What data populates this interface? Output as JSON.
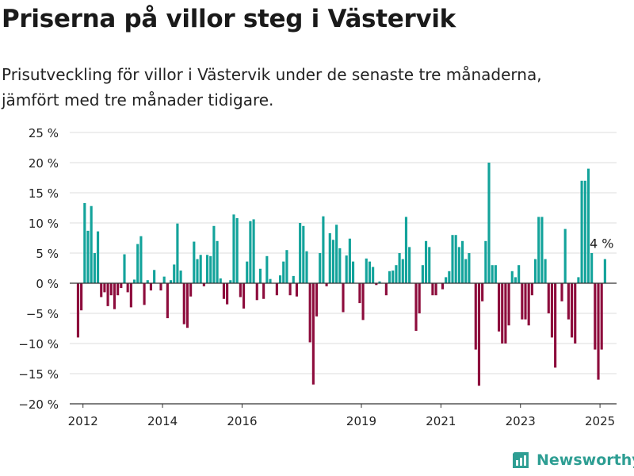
{
  "header": {
    "title": "Priserna på villor steg i Västervik",
    "subtitle": "Prisutveckling för villor i Västervik under de senaste tre månaderna, jämfört med tre månader tidigare."
  },
  "brand": {
    "name": "Newsworthy",
    "icon": "bar-chart-logo-icon"
  },
  "colors": {
    "positive": "#13a39b",
    "negative": "#8d0c3c",
    "grid": "#dddddd",
    "axis": "#333333",
    "text": "#222222"
  },
  "chart_data": {
    "type": "bar",
    "ylim": [
      -20,
      25
    ],
    "yticks": [
      -20,
      -15,
      -10,
      -5,
      0,
      5,
      10,
      15,
      20,
      25
    ],
    "ytick_labels": [
      "−20 %",
      "−15 %",
      "−10 %",
      "−5 %",
      "0 %",
      "5 %",
      "10 %",
      "15 %",
      "20 %",
      "25 %"
    ],
    "xtick_labels": [
      "2012",
      "2014",
      "2016",
      "2019",
      "2021",
      "2023",
      "2025"
    ],
    "xlim": [
      "2011-09",
      "2025-06"
    ],
    "grid": true,
    "annotation": {
      "text": "4 %",
      "month": "2025-01",
      "value": 4
    },
    "values": [
      {
        "month": "2011-11",
        "value": -9
      },
      {
        "month": "2011-12",
        "value": -4.5
      },
      {
        "month": "2012-01",
        "value": 13.3
      },
      {
        "month": "2012-02",
        "value": 8.7
      },
      {
        "month": "2012-03",
        "value": 12.8
      },
      {
        "month": "2012-04",
        "value": 5
      },
      {
        "month": "2012-05",
        "value": 8.6
      },
      {
        "month": "2012-06",
        "value": -2.3
      },
      {
        "month": "2012-07",
        "value": -1.5
      },
      {
        "month": "2012-08",
        "value": -3.8
      },
      {
        "month": "2012-09",
        "value": -2
      },
      {
        "month": "2012-10",
        "value": -4.3
      },
      {
        "month": "2012-11",
        "value": -2
      },
      {
        "month": "2012-12",
        "value": -0.8
      },
      {
        "month": "2013-01",
        "value": 4.8
      },
      {
        "month": "2013-02",
        "value": -1.5
      },
      {
        "month": "2013-03",
        "value": -4
      },
      {
        "month": "2013-04",
        "value": 0.6
      },
      {
        "month": "2013-05",
        "value": 6.5
      },
      {
        "month": "2013-06",
        "value": 7.8
      },
      {
        "month": "2013-07",
        "value": -3.6
      },
      {
        "month": "2013-08",
        "value": 0.5
      },
      {
        "month": "2013-09",
        "value": -1.2
      },
      {
        "month": "2013-10",
        "value": 2.2
      },
      {
        "month": "2013-11",
        "value": 0
      },
      {
        "month": "2013-12",
        "value": -1.2
      },
      {
        "month": "2014-01",
        "value": 1.1
      },
      {
        "month": "2014-02",
        "value": -5.8
      },
      {
        "month": "2014-03",
        "value": 0.5
      },
      {
        "month": "2014-04",
        "value": 3.1
      },
      {
        "month": "2014-05",
        "value": 9.9
      },
      {
        "month": "2014-06",
        "value": 2.1
      },
      {
        "month": "2014-07",
        "value": -6.8
      },
      {
        "month": "2014-08",
        "value": -7.4
      },
      {
        "month": "2014-09",
        "value": -2.2
      },
      {
        "month": "2014-10",
        "value": 6.9
      },
      {
        "month": "2014-11",
        "value": 4
      },
      {
        "month": "2014-12",
        "value": 4.7
      },
      {
        "month": "2015-01",
        "value": -0.5
      },
      {
        "month": "2015-02",
        "value": 4.7
      },
      {
        "month": "2015-03",
        "value": 4.5
      },
      {
        "month": "2015-04",
        "value": 9.5
      },
      {
        "month": "2015-05",
        "value": 7
      },
      {
        "month": "2015-06",
        "value": 0.8
      },
      {
        "month": "2015-07",
        "value": -2.6
      },
      {
        "month": "2015-08",
        "value": -3.5
      },
      {
        "month": "2015-09",
        "value": 0.5
      },
      {
        "month": "2015-10",
        "value": 11.4
      },
      {
        "month": "2015-11",
        "value": 10.8
      },
      {
        "month": "2015-12",
        "value": -2.3
      },
      {
        "month": "2016-01",
        "value": -4.2
      },
      {
        "month": "2016-02",
        "value": 3.6
      },
      {
        "month": "2016-03",
        "value": 10.3
      },
      {
        "month": "2016-04",
        "value": 10.6
      },
      {
        "month": "2016-05",
        "value": -2.8
      },
      {
        "month": "2016-06",
        "value": 2.4
      },
      {
        "month": "2016-07",
        "value": -2.6
      },
      {
        "month": "2016-08",
        "value": 4.5
      },
      {
        "month": "2016-09",
        "value": 0.7
      },
      {
        "month": "2016-10",
        "value": 0
      },
      {
        "month": "2016-11",
        "value": -2
      },
      {
        "month": "2016-12",
        "value": 1.3
      },
      {
        "month": "2017-01",
        "value": 3.6
      },
      {
        "month": "2017-02",
        "value": 5.5
      },
      {
        "month": "2017-03",
        "value": -2
      },
      {
        "month": "2017-04",
        "value": 1.2
      },
      {
        "month": "2017-05",
        "value": -2.2
      },
      {
        "month": "2017-06",
        "value": 10
      },
      {
        "month": "2017-07",
        "value": 9.5
      },
      {
        "month": "2017-08",
        "value": 5.3
      },
      {
        "month": "2017-09",
        "value": -9.8
      },
      {
        "month": "2017-10",
        "value": -16.8
      },
      {
        "month": "2017-11",
        "value": -5.5
      },
      {
        "month": "2017-12",
        "value": 5
      },
      {
        "month": "2018-01",
        "value": 11.1
      },
      {
        "month": "2018-02",
        "value": -0.5
      },
      {
        "month": "2018-03",
        "value": 8.3
      },
      {
        "month": "2018-04",
        "value": 7.2
      },
      {
        "month": "2018-05",
        "value": 9.7
      },
      {
        "month": "2018-06",
        "value": 5.8
      },
      {
        "month": "2018-07",
        "value": -4.8
      },
      {
        "month": "2018-08",
        "value": 4.6
      },
      {
        "month": "2018-09",
        "value": 7.4
      },
      {
        "month": "2018-10",
        "value": 3.6
      },
      {
        "month": "2018-11",
        "value": 0
      },
      {
        "month": "2018-12",
        "value": -3.3
      },
      {
        "month": "2019-01",
        "value": -6.1
      },
      {
        "month": "2019-02",
        "value": 4.1
      },
      {
        "month": "2019-03",
        "value": 3.6
      },
      {
        "month": "2019-04",
        "value": 2.7
      },
      {
        "month": "2019-05",
        "value": -0.3
      },
      {
        "month": "2019-06",
        "value": 0.3
      },
      {
        "month": "2019-07",
        "value": 0
      },
      {
        "month": "2019-08",
        "value": -2
      },
      {
        "month": "2019-09",
        "value": 2
      },
      {
        "month": "2019-10",
        "value": 2.1
      },
      {
        "month": "2019-11",
        "value": 3
      },
      {
        "month": "2019-12",
        "value": 5
      },
      {
        "month": "2020-01",
        "value": 4
      },
      {
        "month": "2020-02",
        "value": 11
      },
      {
        "month": "2020-03",
        "value": 6
      },
      {
        "month": "2020-04",
        "value": 0
      },
      {
        "month": "2020-05",
        "value": -7.9
      },
      {
        "month": "2020-06",
        "value": -5
      },
      {
        "month": "2020-07",
        "value": 3
      },
      {
        "month": "2020-08",
        "value": 7
      },
      {
        "month": "2020-09",
        "value": 6
      },
      {
        "month": "2020-10",
        "value": -2
      },
      {
        "month": "2020-11",
        "value": -2
      },
      {
        "month": "2020-12",
        "value": 0
      },
      {
        "month": "2021-01",
        "value": -1
      },
      {
        "month": "2021-02",
        "value": 1
      },
      {
        "month": "2021-03",
        "value": 2
      },
      {
        "month": "2021-04",
        "value": 8
      },
      {
        "month": "2021-05",
        "value": 8
      },
      {
        "month": "2021-06",
        "value": 6
      },
      {
        "month": "2021-07",
        "value": 7
      },
      {
        "month": "2021-08",
        "value": 4
      },
      {
        "month": "2021-09",
        "value": 5
      },
      {
        "month": "2021-10",
        "value": 0
      },
      {
        "month": "2021-11",
        "value": -11
      },
      {
        "month": "2021-12",
        "value": -17
      },
      {
        "month": "2022-01",
        "value": -3
      },
      {
        "month": "2022-02",
        "value": 7
      },
      {
        "month": "2022-03",
        "value": 20
      },
      {
        "month": "2022-04",
        "value": 3
      },
      {
        "month": "2022-05",
        "value": 3
      },
      {
        "month": "2022-06",
        "value": -8
      },
      {
        "month": "2022-07",
        "value": -10
      },
      {
        "month": "2022-08",
        "value": -10
      },
      {
        "month": "2022-09",
        "value": -7
      },
      {
        "month": "2022-10",
        "value": 2
      },
      {
        "month": "2022-11",
        "value": 1
      },
      {
        "month": "2022-12",
        "value": 3
      },
      {
        "month": "2023-01",
        "value": -6
      },
      {
        "month": "2023-02",
        "value": -6
      },
      {
        "month": "2023-03",
        "value": -7
      },
      {
        "month": "2023-04",
        "value": -2
      },
      {
        "month": "2023-05",
        "value": 4
      },
      {
        "month": "2023-06",
        "value": 11
      },
      {
        "month": "2023-07",
        "value": 11
      },
      {
        "month": "2023-08",
        "value": 4
      },
      {
        "month": "2023-09",
        "value": -5
      },
      {
        "month": "2023-10",
        "value": -9
      },
      {
        "month": "2023-11",
        "value": -14
      },
      {
        "month": "2023-12",
        "value": 0
      },
      {
        "month": "2024-01",
        "value": -3
      },
      {
        "month": "2024-02",
        "value": 9
      },
      {
        "month": "2024-03",
        "value": -6
      },
      {
        "month": "2024-04",
        "value": -9
      },
      {
        "month": "2024-05",
        "value": -10
      },
      {
        "month": "2024-06",
        "value": 1
      },
      {
        "month": "2024-07",
        "value": 17
      },
      {
        "month": "2024-08",
        "value": 17
      },
      {
        "month": "2024-09",
        "value": 19
      },
      {
        "month": "2024-10",
        "value": 5
      },
      {
        "month": "2024-11",
        "value": -11
      },
      {
        "month": "2024-12",
        "value": -16
      },
      {
        "month": "2025-01",
        "value": -11
      },
      {
        "month": "2025-02",
        "value": 4
      }
    ]
  }
}
